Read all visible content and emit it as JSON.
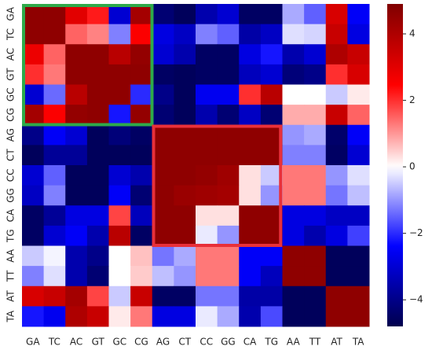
{
  "chart_data": {
    "type": "heatmap",
    "colormap": "seismic",
    "categories": [
      "GA",
      "TC",
      "AC",
      "GT",
      "GC",
      "CG",
      "AG",
      "CT",
      "CC",
      "GG",
      "CA",
      "TG",
      "AA",
      "TT",
      "AT",
      "TA"
    ],
    "y_categories": [
      "GA",
      "TC",
      "AC",
      "GT",
      "GC",
      "CG",
      "AG",
      "CT",
      "CC",
      "GG",
      "CA",
      "TG",
      "AA",
      "TT",
      "AT",
      "TA"
    ],
    "values": [
      [
        4.6,
        4.6,
        3,
        2.2,
        -3,
        4.2,
        -4.3,
        -4.6,
        -3.5,
        -3,
        -4.5,
        -4.5,
        -0.8,
        -1.5,
        3.2,
        -2.5
      ],
      [
        4.6,
        4.6,
        1.5,
        1.2,
        -1.2,
        2.5,
        -2.8,
        -3.2,
        -1.2,
        -1.5,
        -3.6,
        -3.2,
        -0.3,
        -0.4,
        3.5,
        -2.8
      ],
      [
        2.8,
        1.5,
        4.6,
        4.6,
        3.8,
        4.5,
        -3,
        -3.5,
        -4.5,
        -4.5,
        -2.8,
        -2.2,
        -3.5,
        -3,
        4,
        3.5
      ],
      [
        2,
        1.3,
        4.6,
        4.6,
        4.6,
        4.6,
        -4.5,
        -4.6,
        -4.5,
        -4.5,
        -3.3,
        -3,
        -4.2,
        -4,
        2,
        3.2
      ],
      [
        -3,
        -1.4,
        3.8,
        4.6,
        4.6,
        -2,
        -4,
        -4.6,
        -2.6,
        -2.6,
        2,
        3.8,
        0,
        0,
        -0.5,
        0.2
      ],
      [
        4.2,
        2.5,
        4.5,
        4.6,
        -2.2,
        4.5,
        -4.3,
        -4.6,
        -3.5,
        -4.3,
        -3.2,
        -4.3,
        0.8,
        0.8,
        3.5,
        1.5
      ],
      [
        -4,
        -2.5,
        -3,
        -4.6,
        -4.2,
        -4.5,
        4.6,
        4.6,
        4.6,
        4.6,
        4.6,
        4.6,
        -1,
        -0.8,
        -4.4,
        -2.5
      ],
      [
        -4.6,
        -3.8,
        -3.8,
        -4.6,
        -4.6,
        -4.6,
        4.6,
        4.6,
        4.6,
        4.6,
        4.6,
        4.6,
        -1.2,
        -1.2,
        -4.5,
        -3
      ],
      [
        -3,
        -1.5,
        -4.6,
        -4.6,
        -3,
        -3.5,
        4.6,
        4.6,
        4.5,
        4.3,
        0.3,
        -0.5,
        1.3,
        1.3,
        -1,
        -0.3
      ],
      [
        -3.2,
        -1.2,
        -4.6,
        -4.6,
        -2.5,
        -4.3,
        4.6,
        4.4,
        4.3,
        4.2,
        0.3,
        -1,
        1.3,
        1.3,
        -1.3,
        -0.6
      ],
      [
        -4.5,
        -3.8,
        -2.8,
        -2.8,
        1.8,
        -3.3,
        4.6,
        4.6,
        0.3,
        0.3,
        4.6,
        4.6,
        -2.8,
        -2.8,
        -3.2,
        -3.2
      ],
      [
        -4.5,
        -3,
        -2.5,
        -3.5,
        3.8,
        -4.5,
        4.6,
        4.6,
        -0.2,
        -1,
        4.6,
        4.6,
        -2.8,
        -3.5,
        -2.8,
        -1.8
      ],
      [
        -0.5,
        -0.1,
        -3.5,
        -4,
        0,
        0.6,
        -1.3,
        -0.8,
        1.3,
        1.3,
        -2.5,
        -2.5,
        4.6,
        4.6,
        -4.6,
        -4.6
      ],
      [
        -1.2,
        -0.3,
        -3.5,
        -4.3,
        0,
        0.5,
        -0.6,
        -1,
        1.3,
        1.3,
        -2.5,
        -3.3,
        4.6,
        4.6,
        -4.6,
        -4.6
      ],
      [
        3.2,
        3.5,
        4.2,
        1.8,
        -0.5,
        3.5,
        -4.5,
        -4.5,
        -1.3,
        -1.3,
        -3.6,
        -3.6,
        -4.6,
        -4.6,
        4.6,
        4.6
      ],
      [
        -2.2,
        -2.6,
        4,
        3.5,
        0.2,
        1.3,
        -2.8,
        -2.8,
        -0.2,
        -0.8,
        -3.5,
        -1.7,
        -4.6,
        -4.6,
        4.6,
        4.6
      ]
    ],
    "clim": [
      -4.8,
      4.9
    ],
    "cticks": [
      {
        "value": -4,
        "label": "−4"
      },
      {
        "value": -2,
        "label": "−2"
      },
      0,
      2,
      4
    ]
  }
}
